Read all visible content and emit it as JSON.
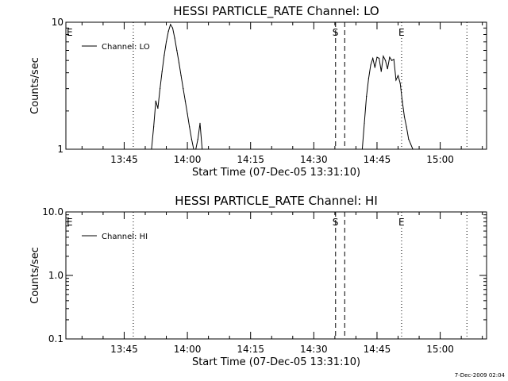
{
  "chart_data": [
    {
      "type": "line",
      "title": "HESSI PARTICLE_RATE Channel: LO",
      "xlabel": "Start Time (07-Dec-05 13:31:10)",
      "ylabel": "Counts/sec",
      "yscale": "log",
      "ylim": [
        1,
        10
      ],
      "yticks": [
        "1",
        "10"
      ],
      "xlim": [
        "13:31:10",
        "15:11:00"
      ],
      "xticks": [
        "13:45",
        "14:00",
        "14:15",
        "14:30",
        "14:45",
        "15:00"
      ],
      "legend": "top-left",
      "grid": false,
      "series": [
        {
          "name": "Channel: LO",
          "x": [
            "13:51:30",
            "13:52:00",
            "13:52:30",
            "13:53:00",
            "13:53:30",
            "13:54:00",
            "13:54:30",
            "13:55:00",
            "13:55:30",
            "13:56:00",
            "13:56:30",
            "13:57:00",
            "13:57:30",
            "13:58:00",
            "13:58:30",
            "13:59:00",
            "13:59:30",
            "14:00:00",
            "14:00:30",
            "14:01:00",
            "14:01:30",
            "14:02:00",
            "14:02:30",
            "14:03:00",
            "14:03:30",
            "14:41:30",
            "14:42:00",
            "14:42:30",
            "14:43:00",
            "14:43:30",
            "14:44:00",
            "14:44:30",
            "14:45:00",
            "14:45:30",
            "14:46:00",
            "14:46:30",
            "14:47:00",
            "14:47:30",
            "14:48:00",
            "14:48:30",
            "14:49:00",
            "14:49:30",
            "14:50:00",
            "14:50:30",
            "14:51:00",
            "14:51:30",
            "14:52:00",
            "14:52:30",
            "14:53:00",
            "14:53:30"
          ],
          "values": [
            1.0,
            1.5,
            2.4,
            2.1,
            3.0,
            4.1,
            5.5,
            7.0,
            8.5,
            9.6,
            9.0,
            7.5,
            6.0,
            4.8,
            3.8,
            3.0,
            2.4,
            1.9,
            1.5,
            1.2,
            1.0,
            1.0,
            1.2,
            1.6,
            1.0,
            1.0,
            1.6,
            2.6,
            3.6,
            4.6,
            5.2,
            4.4,
            5.3,
            5.2,
            4.1,
            5.4,
            5.0,
            4.3,
            5.3,
            5.0,
            5.1,
            3.5,
            3.8,
            3.3,
            2.4,
            1.8,
            1.5,
            1.2,
            1.1,
            1.0
          ]
        }
      ],
      "markers": [
        {
          "label": "E",
          "x": "13:31:10",
          "style": "dotted"
        },
        {
          "label": "",
          "x": "13:47:10",
          "style": "dotted"
        },
        {
          "label": "S",
          "x": "14:35:10",
          "style": "dashed"
        },
        {
          "label": "",
          "x": "14:37:20",
          "style": "dashed"
        },
        {
          "label": "E",
          "x": "14:50:50",
          "style": "dotted"
        },
        {
          "label": "",
          "x": "15:06:20",
          "style": "dotted"
        }
      ]
    },
    {
      "type": "line",
      "title": "HESSI PARTICLE_RATE Channel: HI",
      "xlabel": "Start Time (07-Dec-05 13:31:10)",
      "ylabel": "Counts/sec",
      "yscale": "log",
      "ylim": [
        0.1,
        10.0
      ],
      "yticks": [
        "0.1",
        "1.0",
        "10.0"
      ],
      "xlim": [
        "13:31:10",
        "15:11:00"
      ],
      "xticks": [
        "13:45",
        "14:00",
        "14:15",
        "14:30",
        "14:45",
        "15:00"
      ],
      "legend": "top-left",
      "grid": false,
      "series": [
        {
          "name": "Channel: HI",
          "x": [],
          "values": []
        }
      ],
      "markers": [
        {
          "label": "E",
          "x": "13:31:10",
          "style": "dotted"
        },
        {
          "label": "",
          "x": "13:47:10",
          "style": "dotted"
        },
        {
          "label": "S",
          "x": "14:35:10",
          "style": "dashed"
        },
        {
          "label": "",
          "x": "14:37:20",
          "style": "dashed"
        },
        {
          "label": "E",
          "x": "14:50:50",
          "style": "dotted"
        },
        {
          "label": "",
          "x": "15:06:20",
          "style": "dotted"
        }
      ]
    }
  ],
  "footer": {
    "timestamp": "7-Dec-2009 02:04"
  }
}
